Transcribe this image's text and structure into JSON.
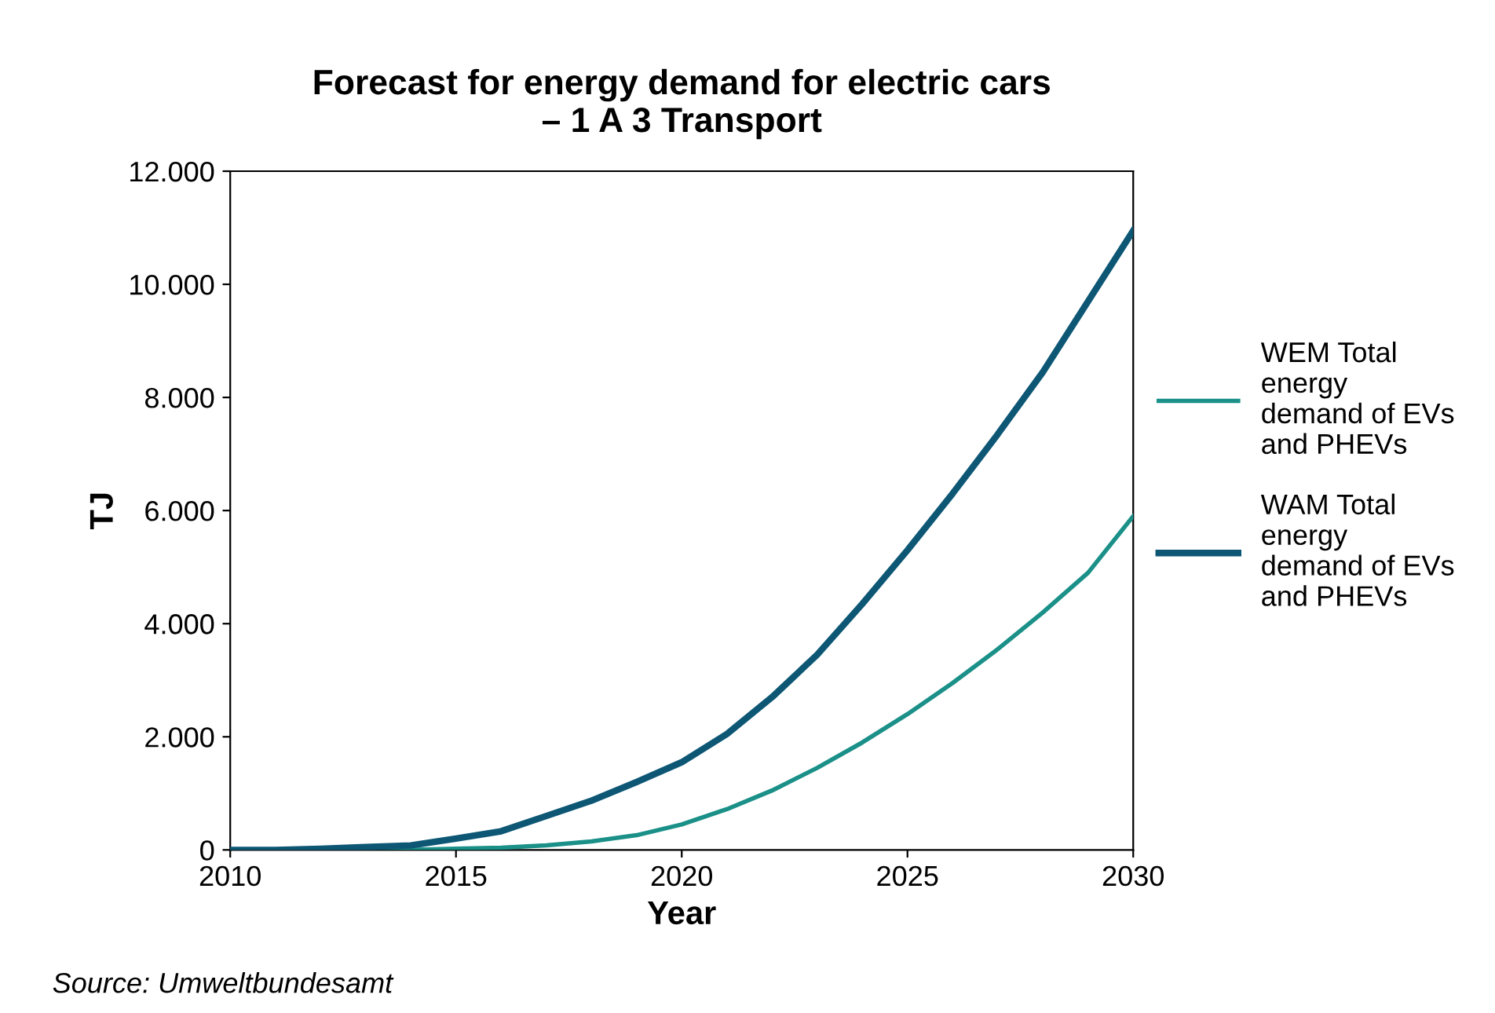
{
  "chart_data": {
    "type": "line",
    "title": "Forecast for energy demand for electric cars\n– 1 A 3 Transport",
    "xlabel": "Year",
    "ylabel": "TJ",
    "x": [
      2010,
      2011,
      2012,
      2013,
      2014,
      2015,
      2016,
      2017,
      2018,
      2019,
      2020,
      2021,
      2022,
      2023,
      2024,
      2025,
      2026,
      2027,
      2028,
      2029,
      2030
    ],
    "series": [
      {
        "name": "WEM Total\nenergy\ndemand of EVs\nand PHEVs",
        "color": "#1a9088",
        "values": [
          0,
          0,
          0,
          0,
          0,
          20,
          40,
          80,
          150,
          260,
          450,
          720,
          1050,
          1450,
          1900,
          2400,
          2950,
          3550,
          4200,
          4900,
          5900
        ]
      },
      {
        "name": "WAM Total\nenergy\ndemand of EVs\nand PHEVs",
        "color": "#0d5775",
        "values": [
          0,
          0,
          20,
          50,
          80,
          200,
          330,
          600,
          870,
          1200,
          1550,
          2050,
          2700,
          3450,
          4350,
          5300,
          6300,
          7350,
          8450,
          9700,
          10950
        ]
      }
    ],
    "xlim": [
      2010,
      2030
    ],
    "xticks": [
      2010,
      2015,
      2020,
      2025,
      2030
    ],
    "ylim": [
      0,
      12000
    ],
    "yticks": [
      {
        "value": 0,
        "label": "0"
      },
      {
        "value": 2000,
        "label": "2.000"
      },
      {
        "value": 4000,
        "label": "4.000"
      },
      {
        "value": 6000,
        "label": "6.000"
      },
      {
        "value": 8000,
        "label": "8.000"
      },
      {
        "value": 10000,
        "label": "10.000"
      },
      {
        "value": 12000,
        "label": "12.000"
      }
    ],
    "grid": false,
    "legend": "right",
    "marker": "none",
    "line_style": "solid",
    "annotations": [
      "Source: Umweltbundesamt"
    ]
  }
}
